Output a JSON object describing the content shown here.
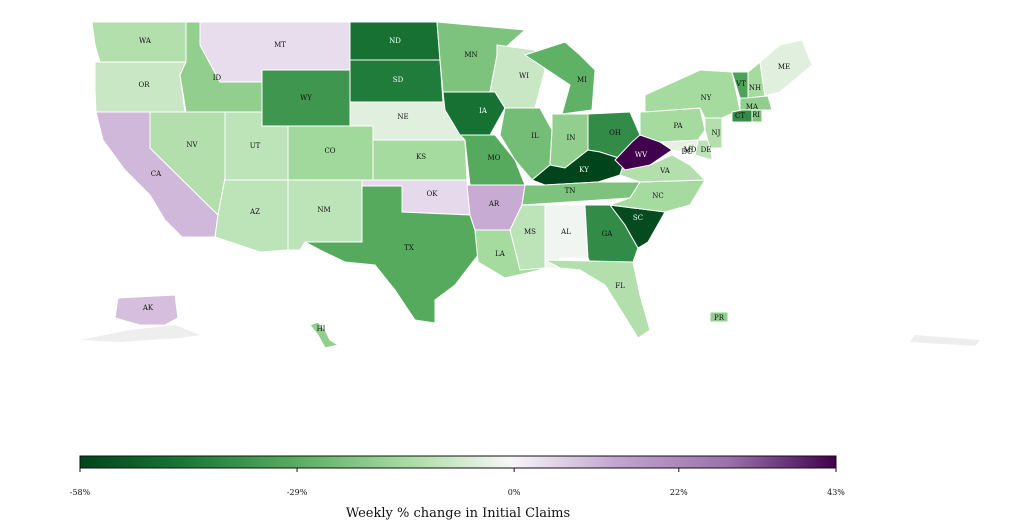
{
  "map": {
    "title": "",
    "colors": {
      "strong_green": "#00441b",
      "mid_green": "#3a9a4a",
      "light_green": "#a8dca0",
      "pale_green": "#e2f2dc",
      "neutral": "#f7f7f7",
      "pale_purple": "#ecdcec",
      "mid_purple": "#c6a3d0",
      "strong_purple": "#40004b",
      "bg_gray": "#e6e6e6"
    },
    "states": [
      {
        "abbr": "WA",
        "value": -12
      },
      {
        "abbr": "OR",
        "value": -8
      },
      {
        "abbr": "CA",
        "value": 16
      },
      {
        "abbr": "NV",
        "value": -12
      },
      {
        "abbr": "ID",
        "value": -18
      },
      {
        "abbr": "MT",
        "value": 6
      },
      {
        "abbr": "WY",
        "value": -35
      },
      {
        "abbr": "UT",
        "value": -10
      },
      {
        "abbr": "CO",
        "value": -15
      },
      {
        "abbr": "AZ",
        "value": -10
      },
      {
        "abbr": "NM",
        "value": -10
      },
      {
        "abbr": "ND",
        "value": -45
      },
      {
        "abbr": "SD",
        "value": -42
      },
      {
        "abbr": "NE",
        "value": -4
      },
      {
        "abbr": "KS",
        "value": -14
      },
      {
        "abbr": "OK",
        "value": 7
      },
      {
        "abbr": "TX",
        "value": -30
      },
      {
        "abbr": "MN",
        "value": -22
      },
      {
        "abbr": "IA",
        "value": -45
      },
      {
        "abbr": "MO",
        "value": -30
      },
      {
        "abbr": "AR",
        "value": 20
      },
      {
        "abbr": "LA",
        "value": -14
      },
      {
        "abbr": "WI",
        "value": -8
      },
      {
        "abbr": "IL",
        "value": -24
      },
      {
        "abbr": "MI",
        "value": -28
      },
      {
        "abbr": "IN",
        "value": -18
      },
      {
        "abbr": "OH",
        "value": -38
      },
      {
        "abbr": "KY",
        "value": -58
      },
      {
        "abbr": "TN",
        "value": -22
      },
      {
        "abbr": "MS",
        "value": -10
      },
      {
        "abbr": "AL",
        "value": -1
      },
      {
        "abbr": "GA",
        "value": -38
      },
      {
        "abbr": "FL",
        "value": -12
      },
      {
        "abbr": "SC",
        "value": -56
      },
      {
        "abbr": "NC",
        "value": -14
      },
      {
        "abbr": "VA",
        "value": -12
      },
      {
        "abbr": "WV",
        "value": 43
      },
      {
        "abbr": "MD",
        "value": -3
      },
      {
        "abbr": "DE",
        "value": -10
      },
      {
        "abbr": "PA",
        "value": -14
      },
      {
        "abbr": "NJ",
        "value": -12
      },
      {
        "abbr": "NY",
        "value": -14
      },
      {
        "abbr": "CT",
        "value": -38
      },
      {
        "abbr": "RI",
        "value": -22
      },
      {
        "abbr": "MA",
        "value": -18
      },
      {
        "abbr": "VT",
        "value": -32
      },
      {
        "abbr": "NH",
        "value": -14
      },
      {
        "abbr": "ME",
        "value": -4
      },
      {
        "abbr": "AK",
        "value": 14
      },
      {
        "abbr": "HI",
        "value": -18
      },
      {
        "abbr": "PR",
        "value": -18
      },
      {
        "abbr": "DC",
        "value": -10
      }
    ]
  },
  "colorbar": {
    "min": -58,
    "max": 43,
    "ticks": [
      {
        "value": -58,
        "label": "-58%"
      },
      {
        "value": -29,
        "label": "-29%"
      },
      {
        "value": 0,
        "label": "0%"
      },
      {
        "value": 22,
        "label": "22%"
      },
      {
        "value": 43,
        "label": "43%"
      }
    ],
    "label": "Weekly % change in Initial Claims"
  }
}
